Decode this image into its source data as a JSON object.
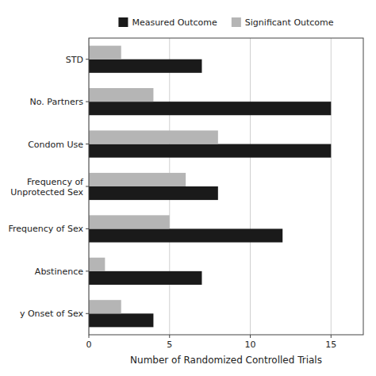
{
  "chart_data": {
    "type": "bar",
    "orientation": "horizontal",
    "categories": [
      "STD",
      "No. Partners",
      "Condom Use",
      "Frequency of\nUnprotected Sex",
      "Frequency of Sex",
      "Abstinence",
      "y Onset of Sex"
    ],
    "series": [
      {
        "name": "Measured Outcome",
        "color": "#1a1a1a",
        "values": [
          7,
          15,
          15,
          8,
          12,
          7,
          4
        ]
      },
      {
        "name": "Significant Outcome",
        "color": "#b5b5b5",
        "values": [
          2,
          4,
          8,
          6,
          5,
          1,
          2
        ]
      }
    ],
    "xlabel": "Number of Randomized Controlled Trials",
    "xlim": [
      0,
      17
    ],
    "xticks": [
      0,
      5,
      10,
      15
    ],
    "grid": true,
    "legend": "upper center"
  }
}
